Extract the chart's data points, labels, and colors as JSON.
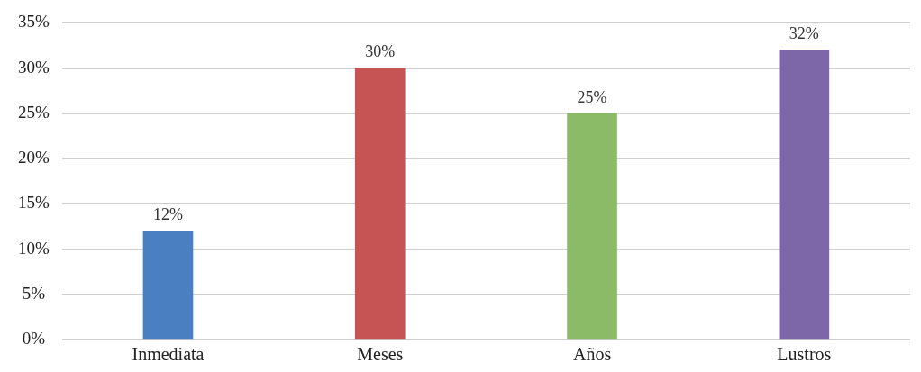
{
  "chart_data": {
    "type": "bar",
    "categories": [
      "Inmediata",
      "Meses",
      "Años",
      "Lustros"
    ],
    "values": [
      12,
      30,
      25,
      32
    ],
    "colors": [
      "#4a7fc1",
      "#c65454",
      "#8cbb68",
      "#7e67a8"
    ],
    "value_labels": [
      "12%",
      "30%",
      "25%",
      "32%"
    ],
    "ylim": [
      0,
      35
    ],
    "yticks": [
      {
        "value": 0,
        "label": "0%"
      },
      {
        "value": 5,
        "label": "5%"
      },
      {
        "value": 10,
        "label": "10%"
      },
      {
        "value": 15,
        "label": "15%"
      },
      {
        "value": 20,
        "label": "20%"
      },
      {
        "value": 25,
        "label": "25%"
      },
      {
        "value": 30,
        "label": "30%"
      },
      {
        "value": 35,
        "label": "35%"
      }
    ],
    "grid": "y",
    "legend": false
  }
}
